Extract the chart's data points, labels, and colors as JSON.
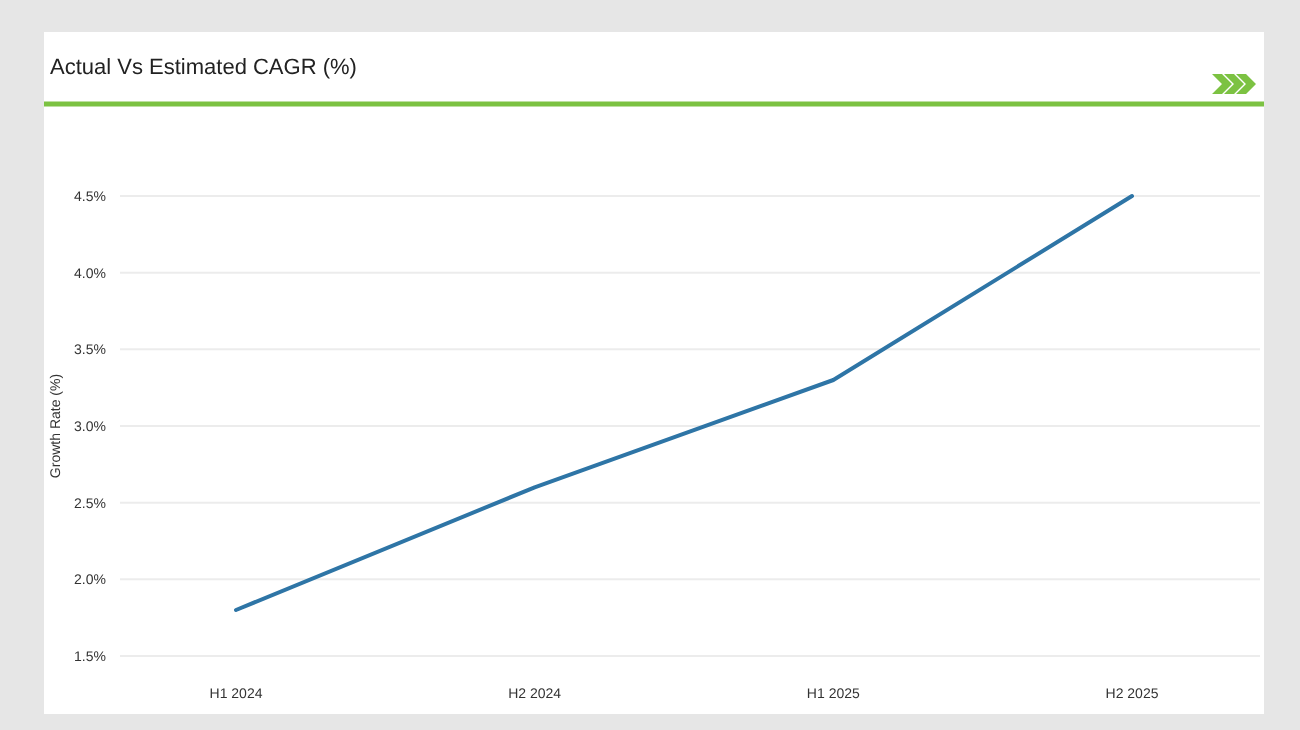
{
  "chart_data": {
    "type": "line",
    "title": "Actual Vs Estimated CAGR (%)",
    "ylabel": "Growth Rate (%)",
    "categories": [
      "H1 2024",
      "H2 2024",
      "H1 2025",
      "H2 2025"
    ],
    "series": [
      {
        "color": "#2e75a6",
        "values": [
          1.8,
          2.6,
          3.3,
          4.5
        ]
      }
    ],
    "ylim": [
      1.5,
      4.5
    ],
    "yticks": [
      {
        "value": 1.5,
        "label": "1.5%"
      },
      {
        "value": 2.0,
        "label": "2.0%"
      },
      {
        "value": 2.5,
        "label": "2.5%"
      },
      {
        "value": 3.0,
        "label": "3.0%"
      },
      {
        "value": 3.5,
        "label": "3.5%"
      },
      {
        "value": 4.0,
        "label": "4.0%"
      },
      {
        "value": 4.5,
        "label": "4.5%"
      }
    ],
    "grid": "y",
    "marker": "none",
    "line_style": "solid"
  }
}
